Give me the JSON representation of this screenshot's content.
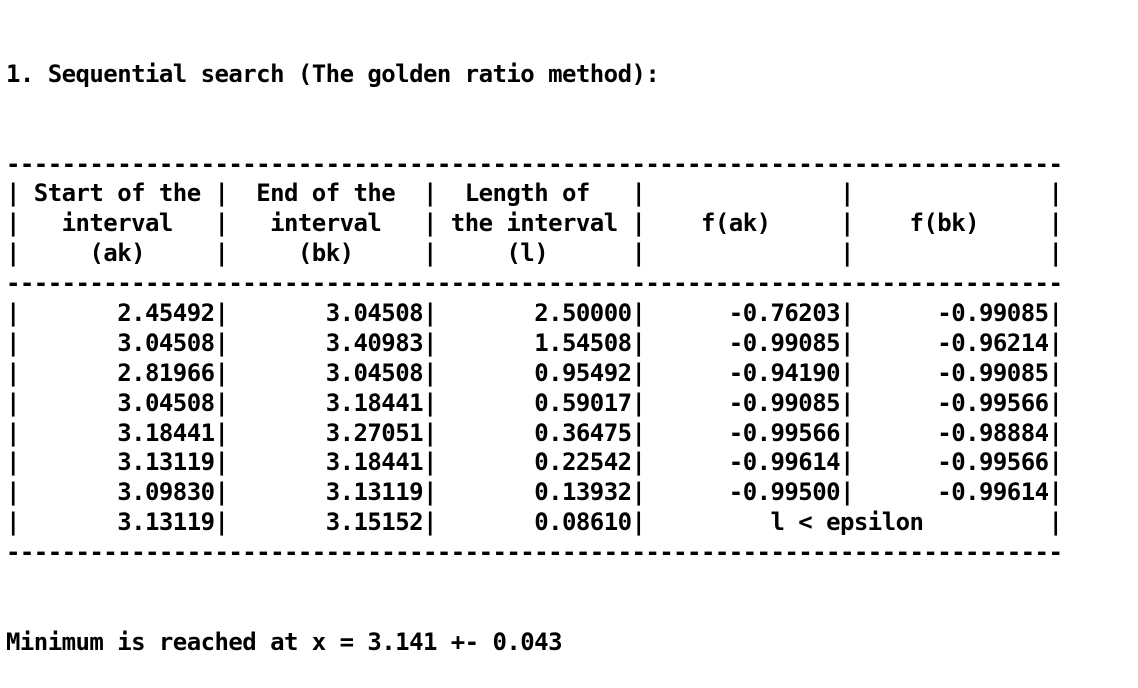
{
  "heading": "1. Sequential search (The golden ratio method):",
  "columns": [
    {
      "lines": [
        "Start of the",
        "interval",
        "(ak)"
      ]
    },
    {
      "lines": [
        "End of the",
        "interval",
        "(bk)"
      ]
    },
    {
      "lines": [
        "Length of",
        "the interval",
        "(l)"
      ]
    },
    {
      "lines": [
        "",
        "f(ak)",
        ""
      ]
    },
    {
      "lines": [
        "",
        "f(bk)",
        ""
      ]
    }
  ],
  "rows": [
    [
      "2.45492",
      "3.04508",
      "2.50000",
      "-0.76203",
      "-0.99085"
    ],
    [
      "3.04508",
      "3.40983",
      "1.54508",
      "-0.99085",
      "-0.96214"
    ],
    [
      "2.81966",
      "3.04508",
      "0.95492",
      "-0.94190",
      "-0.99085"
    ],
    [
      "3.04508",
      "3.18441",
      "0.59017",
      "-0.99085",
      "-0.99566"
    ],
    [
      "3.18441",
      "3.27051",
      "0.36475",
      "-0.99566",
      "-0.98884"
    ],
    [
      "3.13119",
      "3.18441",
      "0.22542",
      "-0.99614",
      "-0.99566"
    ],
    [
      "3.09830",
      "3.13119",
      "0.13932",
      "-0.99500",
      "-0.99614"
    ]
  ],
  "last_row": {
    "cells": [
      "3.13119",
      "3.15152",
      "0.08610"
    ],
    "note": "l < epsilon"
  },
  "footer": "Minimum is reached at x = 3.141 +- 0.043",
  "colors": {
    "text": "#000000",
    "background": "#ffffff"
  }
}
